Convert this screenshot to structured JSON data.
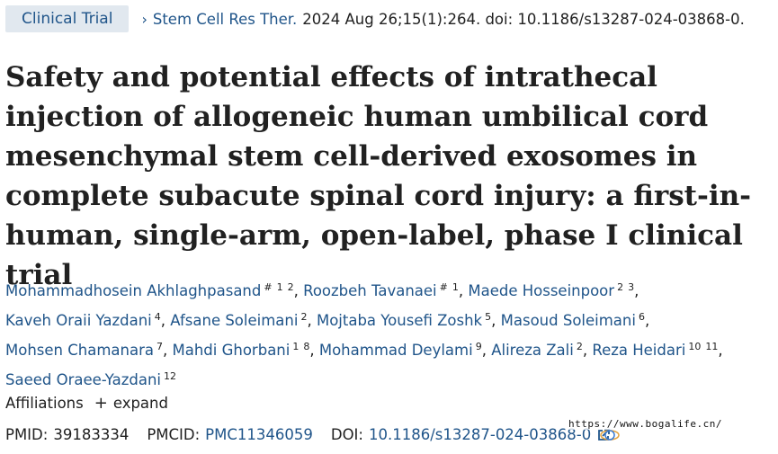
{
  "header": {
    "publication_type": "Clinical Trial",
    "journal": "Stem Cell Res Ther.",
    "citation_rest": "2024 Aug 26;15(1):264. doi: 10.1186/s13287-024-03868-0."
  },
  "title": "Safety and potential effects of intrathecal injection of allogeneic human umbilical cord mesenchymal stem cell-derived exosomes in complete subacute spinal cord injury: a first-in-human, single-arm, open-label, phase I clinical trial",
  "authors": [
    {
      "name": "Mohammadhosein Akhlaghpasand",
      "affs": [
        "#",
        "1",
        "2"
      ]
    },
    {
      "name": "Roozbeh Tavanaei",
      "affs": [
        "#",
        "1"
      ]
    },
    {
      "name": "Maede Hosseinpoor",
      "affs": [
        "2",
        "3"
      ]
    },
    {
      "name": "Kaveh Oraii Yazdani",
      "affs": [
        "4"
      ]
    },
    {
      "name": "Afsane Soleimani",
      "affs": [
        "2"
      ]
    },
    {
      "name": "Mojtaba Yousefi Zoshk",
      "affs": [
        "5"
      ]
    },
    {
      "name": "Masoud Soleimani",
      "affs": [
        "6"
      ]
    },
    {
      "name": "Mohsen Chamanara",
      "affs": [
        "7"
      ]
    },
    {
      "name": "Mahdi Ghorbani",
      "affs": [
        "1",
        "8"
      ]
    },
    {
      "name": "Mohammad Deylami",
      "affs": [
        "9"
      ]
    },
    {
      "name": "Alireza Zali",
      "affs": [
        "2"
      ]
    },
    {
      "name": "Reza Heidari",
      "affs": [
        "10",
        "11"
      ]
    },
    {
      "name": "Saeed Oraee-Yazdani",
      "affs": [
        "12"
      ]
    }
  ],
  "affiliations": {
    "label": "Affiliations",
    "plus_symbol": "+",
    "expand_label": "expand"
  },
  "ids": {
    "pmid_label": "PMID:",
    "pmid": "39183334",
    "pmcid_label": "PMCID:",
    "pmcid": "PMC11346059",
    "doi_label": "DOI:",
    "doi": "10.1186/s13287-024-03868-0"
  },
  "watermark": "https://www.bogalife.cn/",
  "icons": {
    "chevron": "chevron-right-icon",
    "external_link": "external-link-icon"
  },
  "colors": {
    "link": "#20558a",
    "badge_bg": "#e1e8ef",
    "text": "#212121"
  }
}
